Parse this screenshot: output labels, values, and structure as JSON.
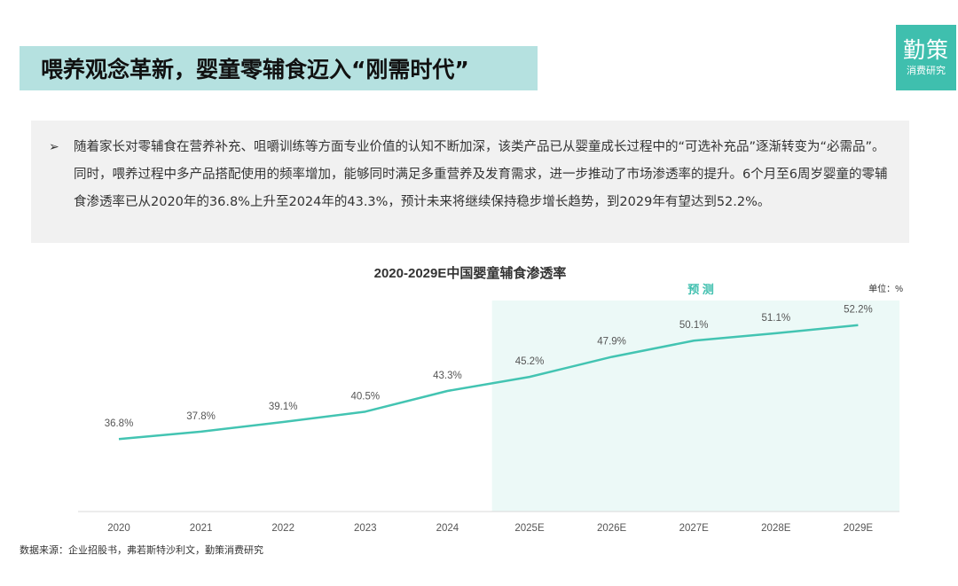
{
  "header": {
    "title": "喂养观念革新，婴童零辅食迈入“刚需时代”",
    "brand_name": "勤策",
    "brand_sub": "消费研究"
  },
  "summary": {
    "bullet": "➢",
    "text": "随着家长对零辅食在营养补充、咀嚼训练等方面专业价值的认知不断加深，该类产品已从婴童成长过程中的“可选补充品”逐渐转变为“必需品”。同时，喂养过程中多产品搭配使用的频率增加，能够同时满足多重营养及发育需求，进一步推动了市场渗透率的提升。6个月至6周岁婴童的零辅食渗透率已从2020年的36.8%上升至2024年的43.3%，预计未来将继续保持稳步增长趋势，到2029年有望达到52.2%。"
  },
  "chart_data": {
    "type": "line",
    "title": "2020-2029E中国婴童辅食渗透率",
    "unit_label": "单位：%",
    "forecast_label": "预 测",
    "categories": [
      "2020",
      "2021",
      "2022",
      "2023",
      "2024",
      "2025E",
      "2026E",
      "2027E",
      "2028E",
      "2029E"
    ],
    "values": [
      36.8,
      37.8,
      39.1,
      40.5,
      43.3,
      45.2,
      47.9,
      50.1,
      51.1,
      52.2
    ],
    "labels": [
      "36.8%",
      "37.8%",
      "39.1%",
      "40.5%",
      "43.3%",
      "45.2%",
      "47.9%",
      "50.1%",
      "51.1%",
      "52.2%"
    ],
    "forecast_start_index": 5,
    "ylim": [
      27,
      56
    ],
    "grid": false,
    "colors": {
      "line": "#43c4b2",
      "forecast_bg": "#ecf9f7",
      "forecast_text": "#3fbfae",
      "axis": "#d9d9d9"
    }
  },
  "footer": {
    "source": "数据来源：企业招股书，弗若斯特沙利文，勤策消费研究"
  }
}
